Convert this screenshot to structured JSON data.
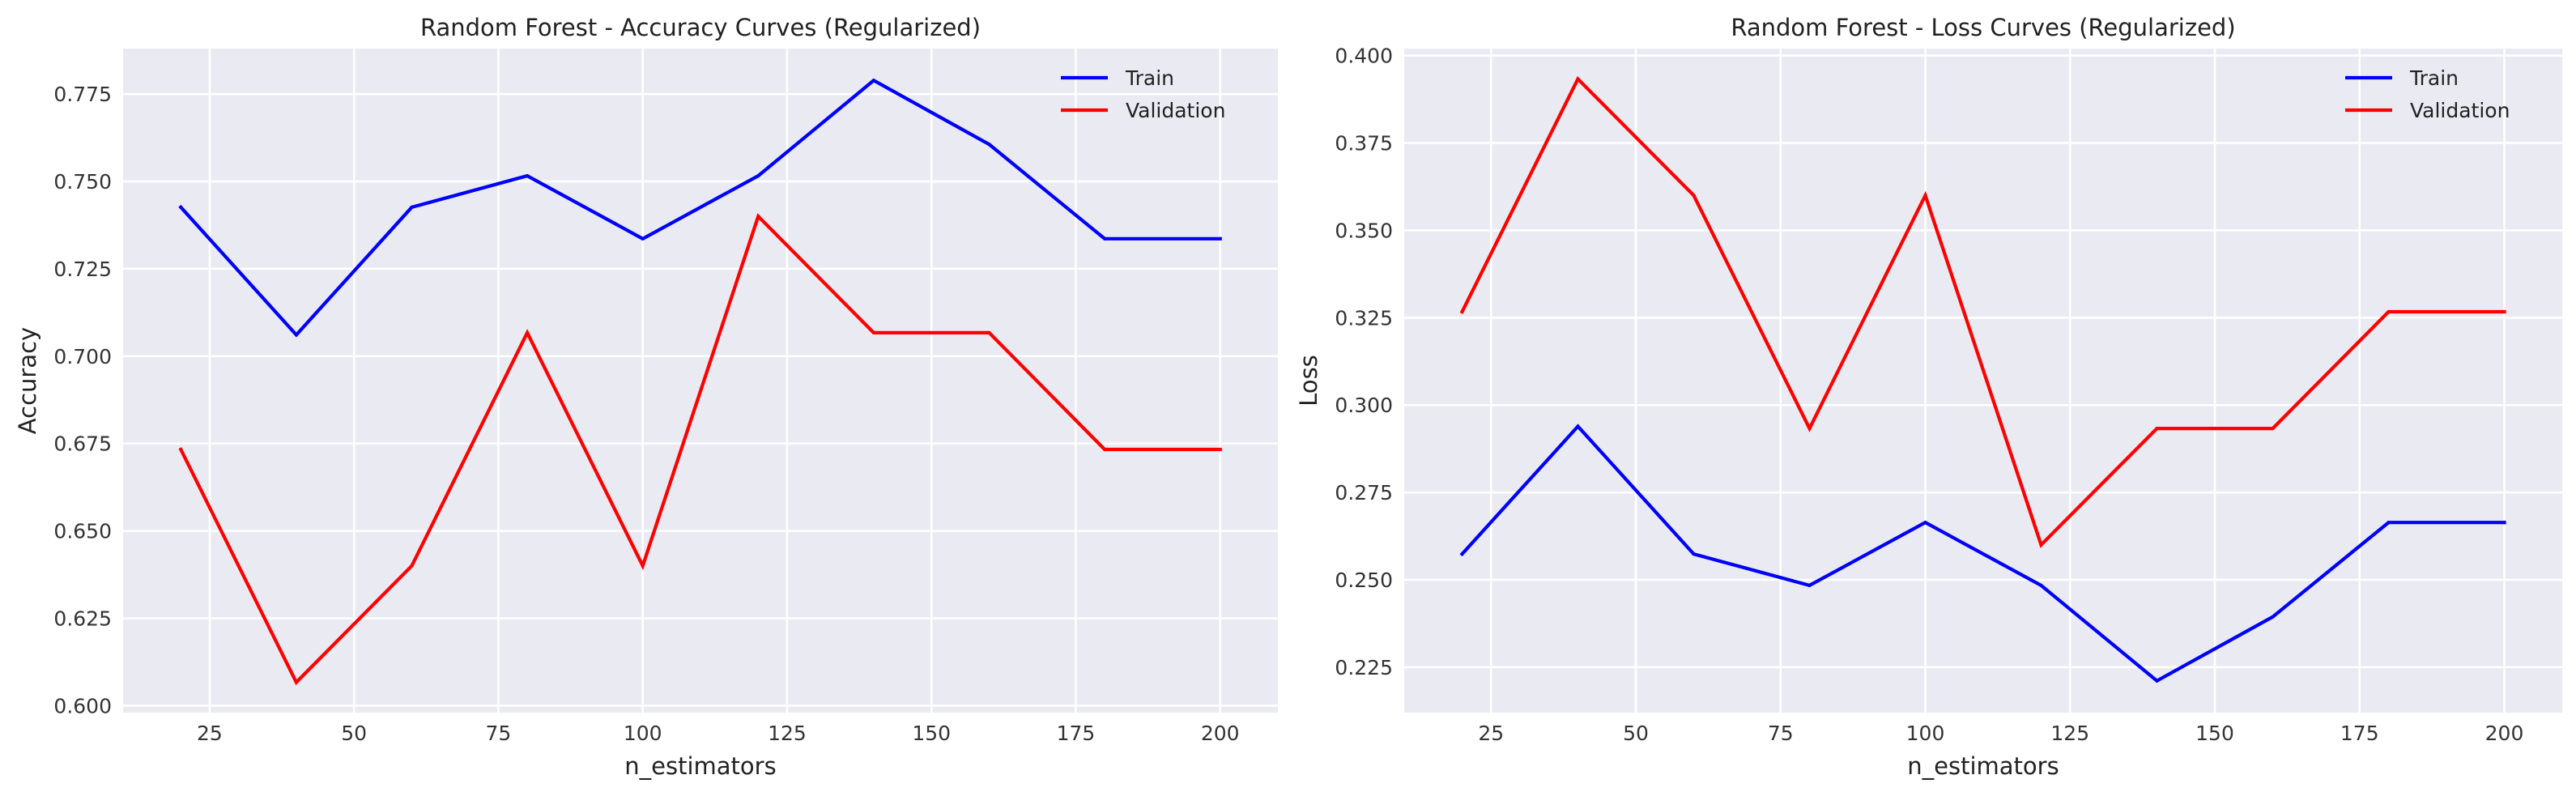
{
  "chart_data": [
    {
      "type": "line",
      "title": "Random Forest - Accuracy Curves (Regularized)",
      "xlabel": "n_estimators",
      "ylabel": "Accuracy",
      "x": [
        20,
        40,
        60,
        80,
        100,
        120,
        140,
        160,
        180,
        200
      ],
      "xlim": [
        10,
        210
      ],
      "ylim": [
        0.598,
        0.788
      ],
      "xticks": [
        25,
        50,
        75,
        100,
        125,
        150,
        175,
        200
      ],
      "xtick_labels": [
        "25",
        "50",
        "75",
        "100",
        "125",
        "150",
        "175",
        "200"
      ],
      "yticks": [
        0.6,
        0.625,
        0.65,
        0.675,
        0.7,
        0.725,
        0.75,
        0.775
      ],
      "ytick_labels": [
        "0.600",
        "0.625",
        "0.650",
        "0.675",
        "0.700",
        "0.725",
        "0.750",
        "0.775"
      ],
      "grid": true,
      "legend": "top-right",
      "series": [
        {
          "name": "Train",
          "color": "#0000ff",
          "values": [
            0.7426,
            0.7061,
            0.7426,
            0.7516,
            0.7336,
            0.7516,
            0.7789,
            0.7606,
            0.7336,
            0.7336
          ]
        },
        {
          "name": "Validation",
          "color": "#ff0000",
          "values": [
            0.6733,
            0.6067,
            0.64,
            0.7067,
            0.64,
            0.74,
            0.7067,
            0.7067,
            0.6733,
            0.6733
          ]
        }
      ]
    },
    {
      "type": "line",
      "title": "Random Forest - Loss Curves (Regularized)",
      "xlabel": "n_estimators",
      "ylabel": "Loss",
      "x": [
        20,
        40,
        60,
        80,
        100,
        120,
        140,
        160,
        180,
        200
      ],
      "xlim": [
        10,
        210
      ],
      "ylim": [
        0.212,
        0.402
      ],
      "xticks": [
        25,
        50,
        75,
        100,
        125,
        150,
        175,
        200
      ],
      "xtick_labels": [
        "25",
        "50",
        "75",
        "100",
        "125",
        "150",
        "175",
        "200"
      ],
      "yticks": [
        0.225,
        0.25,
        0.275,
        0.3,
        0.325,
        0.35,
        0.375,
        0.4
      ],
      "ytick_labels": [
        "0.225",
        "0.250",
        "0.275",
        "0.300",
        "0.325",
        "0.350",
        "0.375",
        "0.400"
      ],
      "grid": true,
      "legend": "top-right",
      "series": [
        {
          "name": "Train",
          "color": "#0000ff",
          "values": [
            0.2574,
            0.2939,
            0.2574,
            0.2484,
            0.2664,
            0.2484,
            0.2211,
            0.2394,
            0.2664,
            0.2664
          ]
        },
        {
          "name": "Validation",
          "color": "#ff0000",
          "values": [
            0.3267,
            0.3933,
            0.36,
            0.2933,
            0.36,
            0.26,
            0.2933,
            0.2933,
            0.3267,
            0.3267
          ]
        }
      ]
    }
  ]
}
